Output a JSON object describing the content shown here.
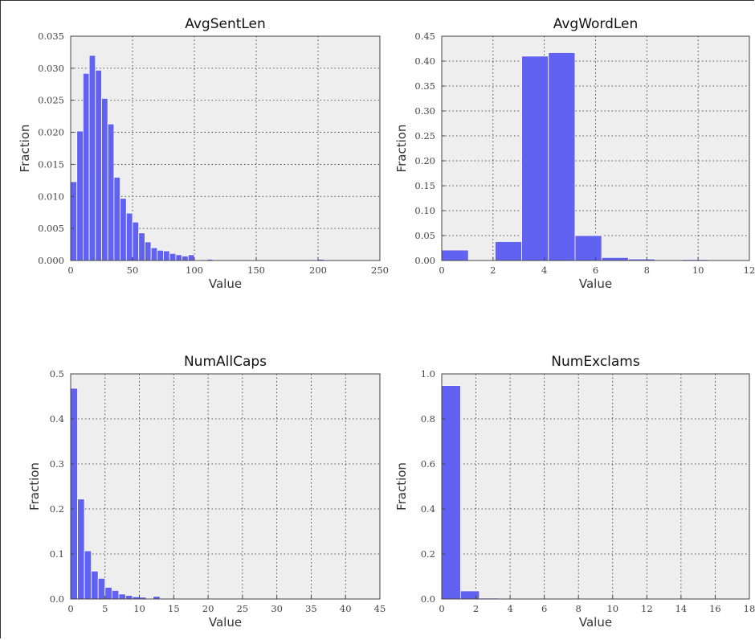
{
  "chart_data": [
    {
      "type": "bar",
      "title": "AvgSentLen",
      "xlabel": "Value",
      "ylabel": "Fraction",
      "xlim": [
        0,
        250
      ],
      "ylim": [
        0,
        0.035
      ],
      "xticks": [
        0,
        50,
        100,
        150,
        200,
        250
      ],
      "yticks": [
        0.0,
        0.005,
        0.01,
        0.015,
        0.02,
        0.025,
        0.03,
        0.035
      ],
      "ytick_labels": [
        "0.000",
        "0.005",
        "0.010",
        "0.015",
        "0.020",
        "0.025",
        "0.030",
        "0.035"
      ],
      "grid": true,
      "bins": [
        {
          "x0": 0,
          "x1": 5,
          "y": 0.0123
        },
        {
          "x0": 5,
          "x1": 10,
          "y": 0.0202
        },
        {
          "x0": 10,
          "x1": 15,
          "y": 0.0292
        },
        {
          "x0": 15,
          "x1": 20,
          "y": 0.032
        },
        {
          "x0": 20,
          "x1": 25,
          "y": 0.0297
        },
        {
          "x0": 25,
          "x1": 30,
          "y": 0.0253
        },
        {
          "x0": 30,
          "x1": 35,
          "y": 0.0213
        },
        {
          "x0": 35,
          "x1": 40,
          "y": 0.013
        },
        {
          "x0": 40,
          "x1": 45,
          "y": 0.0097
        },
        {
          "x0": 45,
          "x1": 50,
          "y": 0.0074
        },
        {
          "x0": 50,
          "x1": 55,
          "y": 0.006
        },
        {
          "x0": 55,
          "x1": 60,
          "y": 0.0043
        },
        {
          "x0": 60,
          "x1": 65,
          "y": 0.0029
        },
        {
          "x0": 65,
          "x1": 70,
          "y": 0.002
        },
        {
          "x0": 70,
          "x1": 75,
          "y": 0.0016
        },
        {
          "x0": 75,
          "x1": 80,
          "y": 0.0015
        },
        {
          "x0": 80,
          "x1": 85,
          "y": 0.0011
        },
        {
          "x0": 85,
          "x1": 90,
          "y": 0.0009
        },
        {
          "x0": 90,
          "x1": 95,
          "y": 0.0007
        },
        {
          "x0": 95,
          "x1": 100,
          "y": 0.0009
        },
        {
          "x0": 100,
          "x1": 105,
          "y": 0.0001
        },
        {
          "x0": 110,
          "x1": 115,
          "y": 0.0002
        },
        {
          "x0": 145,
          "x1": 150,
          "y": 0.0001
        },
        {
          "x0": 200,
          "x1": 205,
          "y": 0.0002
        }
      ]
    },
    {
      "type": "bar",
      "title": "AvgWordLen",
      "xlabel": "Value",
      "ylabel": "Fraction",
      "xlim": [
        0,
        12
      ],
      "ylim": [
        0,
        0.45
      ],
      "xticks": [
        0,
        2,
        4,
        6,
        8,
        10,
        12
      ],
      "yticks": [
        0.0,
        0.05,
        0.1,
        0.15,
        0.2,
        0.25,
        0.3,
        0.35,
        0.4,
        0.45
      ],
      "ytick_labels": [
        "0.00",
        "0.05",
        "0.10",
        "0.15",
        "0.20",
        "0.25",
        "0.30",
        "0.35",
        "0.40",
        "0.45"
      ],
      "grid": true,
      "bins": [
        {
          "x0": 0.0,
          "x1": 1.04,
          "y": 0.021
        },
        {
          "x0": 2.08,
          "x1": 3.12,
          "y": 0.038
        },
        {
          "x0": 3.12,
          "x1": 4.16,
          "y": 0.41
        },
        {
          "x0": 4.16,
          "x1": 5.2,
          "y": 0.417
        },
        {
          "x0": 5.2,
          "x1": 6.24,
          "y": 0.05
        },
        {
          "x0": 6.24,
          "x1": 7.28,
          "y": 0.006
        },
        {
          "x0": 7.28,
          "x1": 8.32,
          "y": 0.003
        },
        {
          "x0": 9.36,
          "x1": 10.4,
          "y": 0.002
        }
      ]
    },
    {
      "type": "bar",
      "title": "NumAllCaps",
      "xlabel": "Value",
      "ylabel": "Fraction",
      "xlim": [
        0,
        45
      ],
      "ylim": [
        0,
        0.5
      ],
      "xticks": [
        0,
        5,
        10,
        15,
        20,
        25,
        30,
        35,
        40,
        45
      ],
      "yticks": [
        0.0,
        0.1,
        0.2,
        0.3,
        0.4,
        0.5
      ],
      "ytick_labels": [
        "0.0",
        "0.1",
        "0.2",
        "0.3",
        "0.4",
        "0.5"
      ],
      "grid": true,
      "bins": [
        {
          "x0": 0,
          "x1": 1,
          "y": 0.468
        },
        {
          "x0": 1,
          "x1": 2,
          "y": 0.222
        },
        {
          "x0": 2,
          "x1": 3,
          "y": 0.107
        },
        {
          "x0": 3,
          "x1": 4,
          "y": 0.062
        },
        {
          "x0": 4,
          "x1": 5,
          "y": 0.046
        },
        {
          "x0": 5,
          "x1": 6,
          "y": 0.026
        },
        {
          "x0": 6,
          "x1": 7,
          "y": 0.019
        },
        {
          "x0": 7,
          "x1": 8,
          "y": 0.011
        },
        {
          "x0": 8,
          "x1": 9,
          "y": 0.008
        },
        {
          "x0": 9,
          "x1": 10,
          "y": 0.005
        },
        {
          "x0": 10,
          "x1": 11,
          "y": 0.004
        },
        {
          "x0": 11,
          "x1": 12,
          "y": 0.001
        },
        {
          "x0": 12,
          "x1": 13,
          "y": 0.006
        }
      ]
    },
    {
      "type": "bar",
      "title": "NumExclams",
      "xlabel": "Value",
      "ylabel": "Fraction",
      "xlim": [
        0,
        18
      ],
      "ylim": [
        0,
        1.0
      ],
      "xticks": [
        0,
        2,
        4,
        6,
        8,
        10,
        12,
        14,
        16,
        18
      ],
      "yticks": [
        0.0,
        0.2,
        0.4,
        0.6,
        0.8,
        1.0
      ],
      "ytick_labels": [
        "0.0",
        "0.2",
        "0.4",
        "0.6",
        "0.8",
        "1.0"
      ],
      "grid": true,
      "bins": [
        {
          "x0": 0,
          "x1": 1.1,
          "y": 0.948
        },
        {
          "x0": 1.1,
          "x1": 2.2,
          "y": 0.036
        },
        {
          "x0": 2.2,
          "x1": 3.3,
          "y": 0.004
        }
      ]
    }
  ],
  "colors": {
    "bar": "#6262f2",
    "plot_background": "#eeeeee"
  }
}
